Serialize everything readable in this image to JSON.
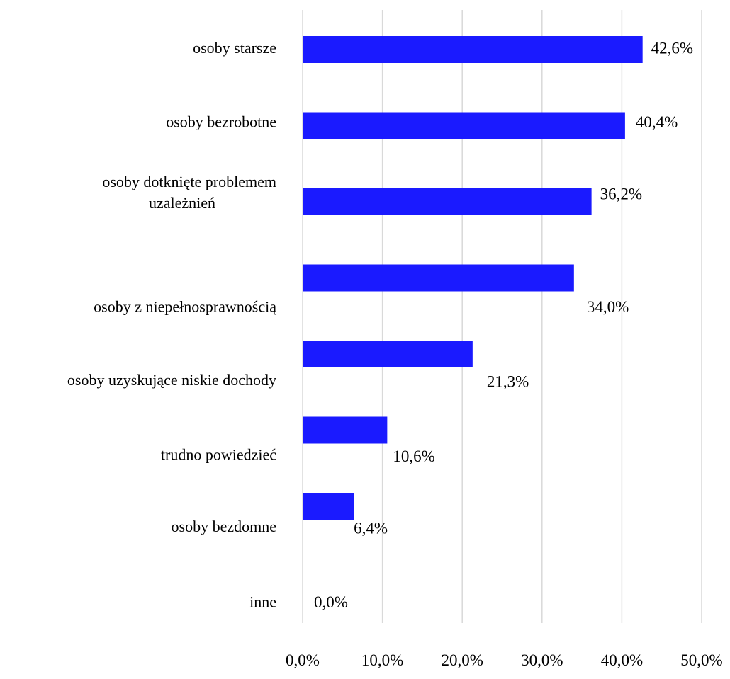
{
  "chart_data": {
    "type": "bar",
    "orientation": "horizontal",
    "categories": [
      [
        "osoby starsze"
      ],
      [
        "osoby bezrobotne"
      ],
      [
        "osoby dotknięte problemem",
        "uzależnień"
      ],
      [
        "osoby z niepełnosprawnością"
      ],
      [
        "osoby uzyskujące niskie dochody"
      ],
      [
        "trudno powiedzieć"
      ],
      [
        "osoby bezdomne"
      ],
      [
        "inne"
      ]
    ],
    "values": [
      42.6,
      40.4,
      36.2,
      34.0,
      21.3,
      10.6,
      6.4,
      0.0
    ],
    "data_labels": [
      "42,6%",
      "40,4%",
      "36,2%",
      "34,0%",
      "21,3%",
      "10,6%",
      "6,4%",
      "0,0%"
    ],
    "x_ticks": [
      0,
      10,
      20,
      30,
      40,
      50
    ],
    "x_tick_labels": [
      "0,0%",
      "10,0%",
      "20,0%",
      "30,0%",
      "40,0%",
      "50,0%"
    ],
    "xlim": [
      0,
      50
    ],
    "grid": true,
    "legend": "none",
    "bar_color": "#1a1aff",
    "grid_color": "#d9d9d9"
  }
}
